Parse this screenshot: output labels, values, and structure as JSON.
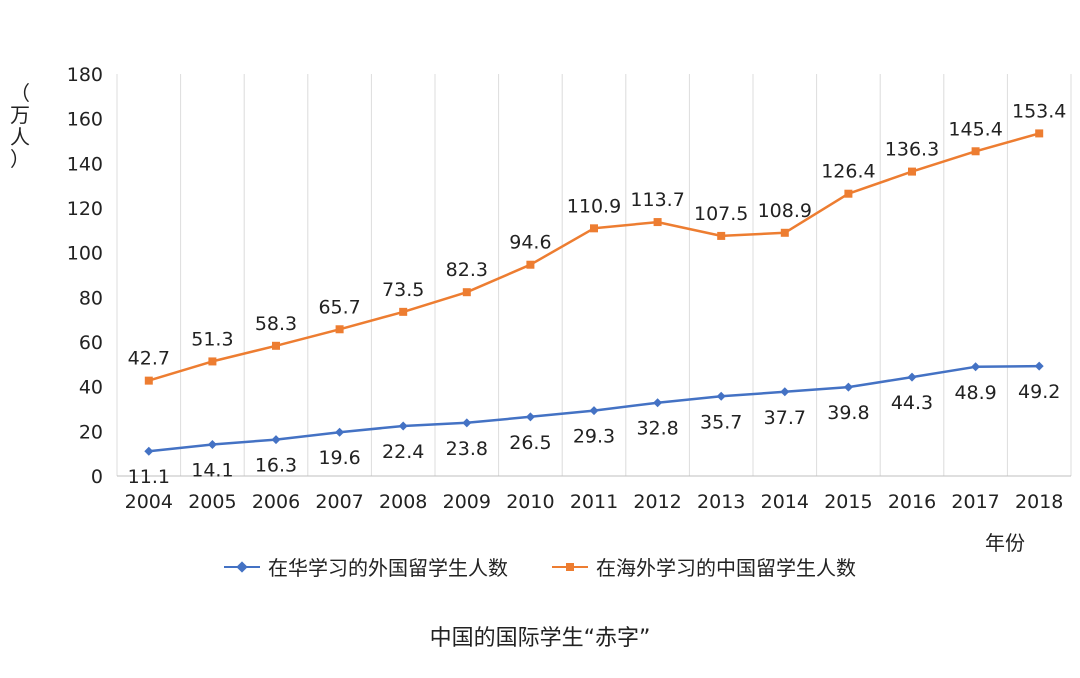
{
  "chart_data": {
    "type": "line",
    "title": "中国的国际学生“赤字”",
    "xlabel": "年份",
    "ylabel": "（万人）",
    "ylabel_chars": [
      "（",
      "万",
      "人",
      "）"
    ],
    "ylim": [
      0,
      180
    ],
    "yticks": [
      0,
      20,
      40,
      60,
      80,
      100,
      120,
      140,
      160,
      180
    ],
    "categories": [
      "2004",
      "2005",
      "2006",
      "2007",
      "2008",
      "2009",
      "2010",
      "2011",
      "2012",
      "2013",
      "2014",
      "2015",
      "2016",
      "2017",
      "2018"
    ],
    "grid": true,
    "legend_position": "bottom",
    "series": [
      {
        "name": "在华学习的外国留学生人数",
        "color": "#4472C4",
        "marker": "diamond",
        "label_position": "below",
        "values": [
          11.1,
          14.1,
          16.3,
          19.6,
          22.4,
          23.8,
          26.5,
          29.3,
          32.8,
          35.7,
          37.7,
          39.8,
          44.3,
          48.9,
          49.2
        ]
      },
      {
        "name": "在海外学习的中国留学生人数",
        "color": "#ED7D31",
        "marker": "square",
        "label_position": "above",
        "values": [
          42.7,
          51.3,
          58.3,
          65.7,
          73.5,
          82.3,
          94.6,
          110.9,
          113.7,
          107.5,
          108.9,
          126.4,
          136.3,
          145.4,
          153.4
        ]
      }
    ]
  }
}
